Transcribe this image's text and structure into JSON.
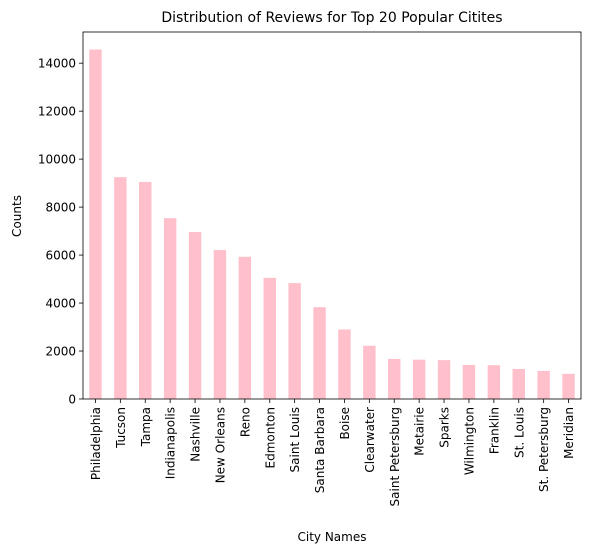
{
  "chart_data": {
    "type": "bar",
    "title": "Distribution of Reviews for Top 20 Popular Citites",
    "xlabel": "City Names",
    "ylabel": "Counts",
    "categories": [
      "Philadelphia",
      "Tucson",
      "Tampa",
      "Indianapolis",
      "Nashville",
      "New Orleans",
      "Reno",
      "Edmonton",
      "Saint Louis",
      "Santa Barbara",
      "Boise",
      "Clearwater",
      "Saint Petersburg",
      "Metairie",
      "Sparks",
      "Wilmington",
      "Franklin",
      "St. Louis",
      "St. Petersburg",
      "Meridian"
    ],
    "values": [
      14570,
      9250,
      9050,
      7540,
      6960,
      6210,
      5930,
      5050,
      4830,
      3830,
      2900,
      2220,
      1670,
      1640,
      1620,
      1420,
      1410,
      1250,
      1170,
      1050
    ],
    "yticks": [
      0,
      2000,
      4000,
      6000,
      8000,
      10000,
      12000,
      14000
    ],
    "ylim": [
      0,
      15300
    ],
    "grid": false,
    "bar_color": "#ffc0cb"
  }
}
